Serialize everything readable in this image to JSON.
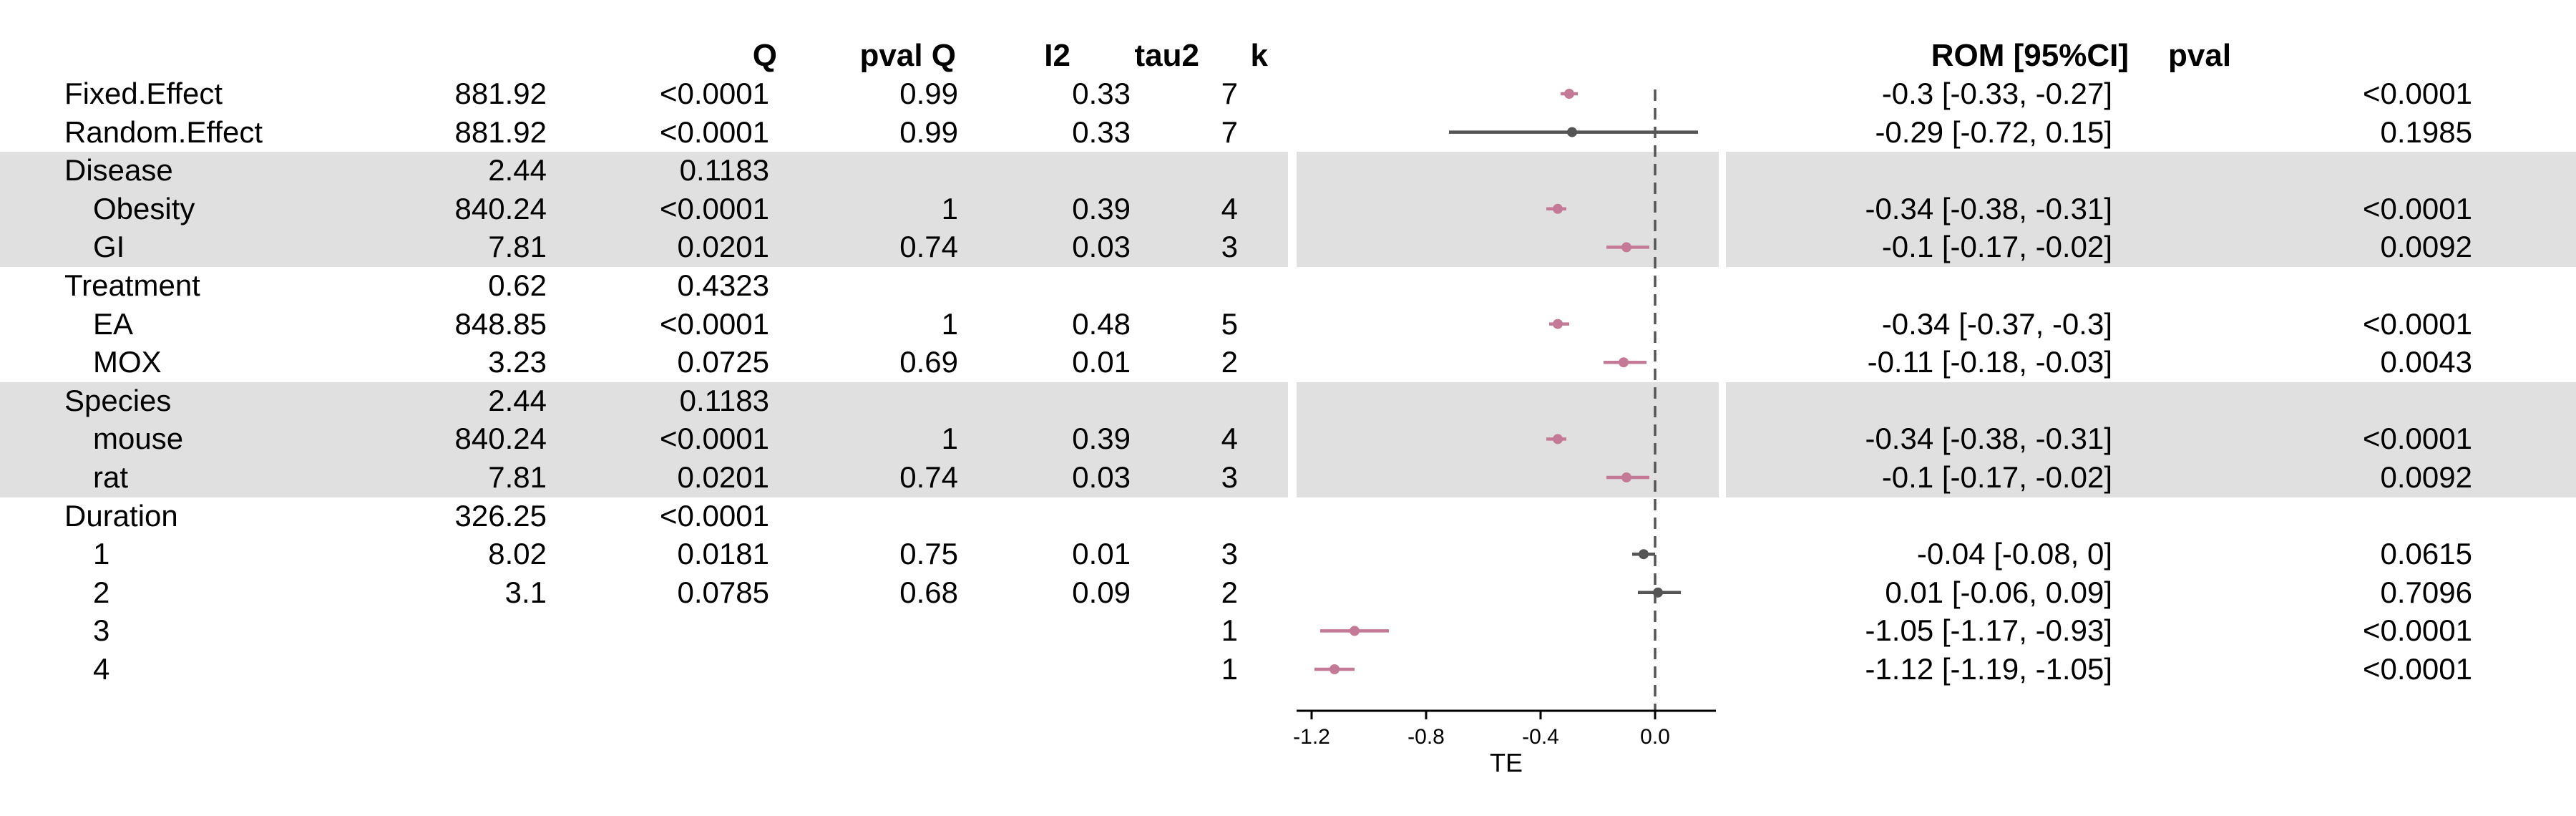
{
  "headers": {
    "q": "Q",
    "pval_q": "pval Q",
    "i2": "I2",
    "tau2": "tau2",
    "k": "k",
    "rom": "ROM [95%CI]",
    "pval": "pval"
  },
  "rows": [
    {
      "label": "Fixed.Effect",
      "indent": false,
      "band": false,
      "q": "881.92",
      "pval_q": "<0.0001",
      "i2": "0.99",
      "tau2": "0.33",
      "k": "7",
      "rom": "-0.3 [-0.33, -0.27]",
      "pval": "<0.0001"
    },
    {
      "label": "Random.Effect",
      "indent": false,
      "band": false,
      "q": "881.92",
      "pval_q": "<0.0001",
      "i2": "0.99",
      "tau2": "0.33",
      "k": "7",
      "rom": "-0.29 [-0.72, 0.15]",
      "pval": "0.1985"
    },
    {
      "label": "Disease",
      "indent": false,
      "band": true,
      "q": "2.44",
      "pval_q": "0.1183",
      "i2": "",
      "tau2": "",
      "k": "",
      "rom": "",
      "pval": ""
    },
    {
      "label": "Obesity",
      "indent": true,
      "band": true,
      "q": "840.24",
      "pval_q": "<0.0001",
      "i2": "1",
      "tau2": "0.39",
      "k": "4",
      "rom": "-0.34 [-0.38, -0.31]",
      "pval": "<0.0001"
    },
    {
      "label": "GI",
      "indent": true,
      "band": true,
      "q": "7.81",
      "pval_q": "0.0201",
      "i2": "0.74",
      "tau2": "0.03",
      "k": "3",
      "rom": "-0.1 [-0.17, -0.02]",
      "pval": "0.0092"
    },
    {
      "label": "Treatment",
      "indent": false,
      "band": false,
      "q": "0.62",
      "pval_q": "0.4323",
      "i2": "",
      "tau2": "",
      "k": "",
      "rom": "",
      "pval": ""
    },
    {
      "label": "EA",
      "indent": true,
      "band": false,
      "q": "848.85",
      "pval_q": "<0.0001",
      "i2": "1",
      "tau2": "0.48",
      "k": "5",
      "rom": "-0.34 [-0.37, -0.3]",
      "pval": "<0.0001"
    },
    {
      "label": "MOX",
      "indent": true,
      "band": false,
      "q": "3.23",
      "pval_q": "0.0725",
      "i2": "0.69",
      "tau2": "0.01",
      "k": "2",
      "rom": "-0.11 [-0.18, -0.03]",
      "pval": "0.0043"
    },
    {
      "label": "Species",
      "indent": false,
      "band": true,
      "q": "2.44",
      "pval_q": "0.1183",
      "i2": "",
      "tau2": "",
      "k": "",
      "rom": "",
      "pval": ""
    },
    {
      "label": "mouse",
      "indent": true,
      "band": true,
      "q": "840.24",
      "pval_q": "<0.0001",
      "i2": "1",
      "tau2": "0.39",
      "k": "4",
      "rom": "-0.34 [-0.38, -0.31]",
      "pval": "<0.0001"
    },
    {
      "label": "rat",
      "indent": true,
      "band": true,
      "q": "7.81",
      "pval_q": "0.0201",
      "i2": "0.74",
      "tau2": "0.03",
      "k": "3",
      "rom": "-0.1 [-0.17, -0.02]",
      "pval": "0.0092"
    },
    {
      "label": "Duration",
      "indent": false,
      "band": false,
      "q": "326.25",
      "pval_q": "<0.0001",
      "i2": "",
      "tau2": "",
      "k": "",
      "rom": "",
      "pval": ""
    },
    {
      "label": "1",
      "indent": true,
      "band": false,
      "q": "8.02",
      "pval_q": "0.0181",
      "i2": "0.75",
      "tau2": "0.01",
      "k": "3",
      "rom": "-0.04 [-0.08, 0]",
      "pval": "0.0615"
    },
    {
      "label": "2",
      "indent": true,
      "band": false,
      "q": "3.1",
      "pval_q": "0.0785",
      "i2": "0.68",
      "tau2": "0.09",
      "k": "2",
      "rom": "0.01 [-0.06, 0.09]",
      "pval": "0.7096"
    },
    {
      "label": "3",
      "indent": true,
      "band": false,
      "q": "",
      "pval_q": "",
      "i2": "",
      "tau2": "",
      "k": "1",
      "rom": "-1.05 [-1.17, -0.93]",
      "pval": "<0.0001"
    },
    {
      "label": "4",
      "indent": true,
      "band": false,
      "q": "",
      "pval_q": "",
      "i2": "",
      "tau2": "",
      "k": "1",
      "rom": "-1.12 [-1.19, -1.05]",
      "pval": "<0.0001"
    }
  ],
  "chart_data": {
    "type": "forest",
    "xlabel": "TE",
    "xlim": [
      -1.25,
      0.22
    ],
    "xticks": [
      -1.2,
      -0.8,
      -0.4,
      0.0
    ],
    "xtick_labels": [
      "-1.2",
      "-0.8",
      "-0.4",
      "0.0"
    ],
    "reference_line": 0,
    "colors": {
      "significant": "#c47a96",
      "not_significant": "#555555",
      "band": "#e0e0e0",
      "reference": "#555555"
    },
    "points": [
      {
        "row": "Fixed.Effect",
        "est": -0.3,
        "lo": -0.33,
        "hi": -0.27,
        "significant": true
      },
      {
        "row": "Random.Effect",
        "est": -0.29,
        "lo": -0.72,
        "hi": 0.15,
        "significant": false
      },
      {
        "row": "Obesity",
        "est": -0.34,
        "lo": -0.38,
        "hi": -0.31,
        "significant": true
      },
      {
        "row": "GI",
        "est": -0.1,
        "lo": -0.17,
        "hi": -0.02,
        "significant": true
      },
      {
        "row": "EA",
        "est": -0.34,
        "lo": -0.37,
        "hi": -0.3,
        "significant": true
      },
      {
        "row": "MOX",
        "est": -0.11,
        "lo": -0.18,
        "hi": -0.03,
        "significant": true
      },
      {
        "row": "mouse",
        "est": -0.34,
        "lo": -0.38,
        "hi": -0.31,
        "significant": true
      },
      {
        "row": "rat",
        "est": -0.1,
        "lo": -0.17,
        "hi": -0.02,
        "significant": true
      },
      {
        "row": "1",
        "est": -0.04,
        "lo": -0.08,
        "hi": 0.0,
        "significant": false
      },
      {
        "row": "2",
        "est": 0.01,
        "lo": -0.06,
        "hi": 0.09,
        "significant": false
      },
      {
        "row": "3",
        "est": -1.05,
        "lo": -1.17,
        "hi": -0.93,
        "significant": true
      },
      {
        "row": "4",
        "est": -1.12,
        "lo": -1.19,
        "hi": -1.05,
        "significant": true
      }
    ]
  }
}
